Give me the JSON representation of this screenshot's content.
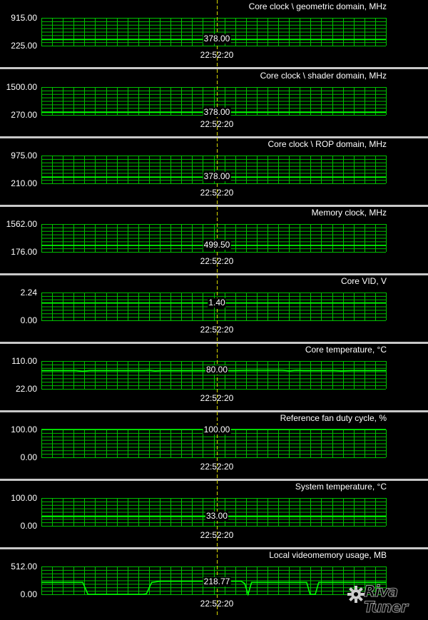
{
  "cursor_time": "22:52:20",
  "colors": {
    "grid": "#00c000",
    "line": "#00ff00",
    "cursor": "#d8d800",
    "background": "#000000",
    "separator": "#c8c8c8"
  },
  "logo": {
    "line1": "Riva",
    "line2": "Tuner",
    "icon": "gear-icon"
  },
  "chart_data": [
    {
      "type": "line",
      "title": "Core clock \\ geometric domain, MHz",
      "ylim": [
        225,
        915
      ],
      "y_top_label": "915.00",
      "y_bottom_label": "225.00",
      "current_value_label": "378.00",
      "series": [
        {
          "x": [
            0,
            1
          ],
          "values": [
            378,
            378
          ]
        }
      ]
    },
    {
      "type": "line",
      "title": "Core clock \\ shader domain, MHz",
      "ylim": [
        270,
        1500
      ],
      "y_top_label": "1500.00",
      "y_bottom_label": "270.00",
      "current_value_label": "378.00",
      "series": [
        {
          "x": [
            0,
            1
          ],
          "values": [
            378,
            378
          ]
        }
      ]
    },
    {
      "type": "line",
      "title": "Core clock \\ ROP domain, MHz",
      "ylim": [
        210,
        975
      ],
      "y_top_label": "975.00",
      "y_bottom_label": "210.00",
      "current_value_label": "378.00",
      "series": [
        {
          "x": [
            0,
            1
          ],
          "values": [
            378,
            378
          ]
        }
      ]
    },
    {
      "type": "line",
      "title": "Memory clock, MHz",
      "ylim": [
        176,
        1562
      ],
      "y_top_label": "1562.00",
      "y_bottom_label": "176.00",
      "current_value_label": "499.50",
      "series": [
        {
          "x": [
            0,
            1
          ],
          "values": [
            499.5,
            499.5
          ]
        }
      ]
    },
    {
      "type": "line",
      "title": "Core VID, V",
      "ylim": [
        0,
        2.24
      ],
      "y_top_label": "2.24",
      "y_bottom_label": "0.00",
      "current_value_label": "1.40",
      "series": [
        {
          "x": [
            0,
            1
          ],
          "values": [
            1.4,
            1.4
          ]
        }
      ]
    },
    {
      "type": "line",
      "title": "Core temperature, °C",
      "ylim": [
        22,
        110
      ],
      "y_top_label": "110.00",
      "y_bottom_label": "22.00",
      "current_value_label": "80.00",
      "series": [
        {
          "x": [
            0,
            0.1,
            0.12,
            0.14,
            0.3,
            0.31,
            0.33,
            0.35,
            0.5,
            0.52,
            0.54,
            0.56,
            0.6,
            0.7,
            0.72,
            0.74,
            0.76,
            0.85,
            0.87,
            0.9,
            1
          ],
          "values": [
            80,
            80,
            78,
            80,
            80,
            81,
            79,
            80,
            80,
            79,
            80,
            80,
            81,
            81,
            79,
            81,
            80,
            80,
            79,
            80,
            80
          ]
        }
      ]
    },
    {
      "type": "line",
      "title": "Reference fan duty cycle, %",
      "ylim": [
        0,
        100
      ],
      "y_top_label": "100.00",
      "y_bottom_label": "0.00",
      "current_value_label": "100.00",
      "series": [
        {
          "x": [
            0,
            1
          ],
          "values": [
            100,
            100
          ]
        }
      ]
    },
    {
      "type": "line",
      "title": "System temperature, °C",
      "ylim": [
        0,
        100
      ],
      "y_top_label": "100.00",
      "y_bottom_label": "0.00",
      "current_value_label": "33.00",
      "series": [
        {
          "x": [
            0,
            1
          ],
          "values": [
            33,
            33
          ]
        }
      ]
    },
    {
      "type": "line",
      "title": "Local videomemory usage, MB",
      "ylim": [
        0,
        512
      ],
      "y_top_label": "512.00",
      "y_bottom_label": "0.00",
      "current_value_label": "218.77",
      "series": [
        {
          "x": [
            0,
            0.11,
            0.12,
            0.135,
            0.145,
            0.295,
            0.305,
            0.32,
            0.345,
            0.58,
            0.59,
            0.6,
            0.61,
            0.77,
            0.78,
            0.795,
            0.805,
            1
          ],
          "values": [
            218.77,
            218.77,
            218.77,
            0,
            0,
            0,
            10,
            218.77,
            240,
            240,
            200,
            0,
            218.77,
            218.77,
            0,
            0,
            218.77,
            218.77
          ]
        }
      ]
    }
  ]
}
